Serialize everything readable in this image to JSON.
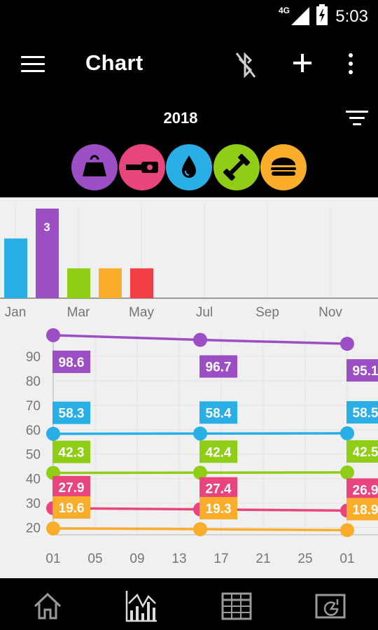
{
  "status": {
    "network": "4G",
    "time": "5:03"
  },
  "appbar": {
    "title": "Chart"
  },
  "year": "2018",
  "categories": [
    {
      "name": "weight",
      "color": "#9c4fc4",
      "icon": "weight-icon"
    },
    {
      "name": "tape-measure",
      "color": "#e8457e",
      "icon": "tape-measure-icon"
    },
    {
      "name": "water",
      "color": "#2aaee6",
      "icon": "water-drop-icon"
    },
    {
      "name": "exercise",
      "color": "#8fcd16",
      "icon": "dumbbell-icon"
    },
    {
      "name": "food",
      "color": "#f9ad2b",
      "icon": "burger-icon"
    }
  ],
  "chart_data": [
    {
      "type": "bar",
      "categories": [
        "Jan",
        "Feb",
        "Mar",
        "Apr",
        "May"
      ],
      "x_tick_labels": [
        "Jan",
        "Mar",
        "May",
        "Jul",
        "Sep",
        "Nov"
      ],
      "series": [
        {
          "values": [
            2,
            3,
            1,
            1,
            1
          ]
        }
      ],
      "bar_colors": [
        "#2aaee6",
        "#9c4fc4",
        "#8fcd16",
        "#f9ad2b",
        "#f23f46"
      ],
      "data_labels": [
        {
          "category": "Feb",
          "text": "3"
        }
      ],
      "ylim": [
        0,
        3
      ]
    },
    {
      "type": "line",
      "x_tick_labels": [
        "01",
        "05",
        "09",
        "13",
        "17",
        "21",
        "25",
        "01"
      ],
      "y_tick_labels": [
        "20",
        "30",
        "40",
        "50",
        "60",
        "70",
        "80",
        "90"
      ],
      "ylim": [
        17,
        100
      ],
      "series": [
        {
          "color": "#9c4fc4",
          "points": [
            {
              "day": 1,
              "value": 98.6,
              "label": "98.6"
            },
            {
              "day": 15,
              "value": 96.7,
              "label": "96.7"
            },
            {
              "day": 29,
              "value": 95.1,
              "label": "95.1"
            }
          ]
        },
        {
          "color": "#2aaee6",
          "points": [
            {
              "day": 1,
              "value": 58.3,
              "label": "58.3"
            },
            {
              "day": 15,
              "value": 58.4,
              "label": "58.4"
            },
            {
              "day": 29,
              "value": 58.5,
              "label": "58.5"
            }
          ]
        },
        {
          "color": "#8fcd16",
          "points": [
            {
              "day": 1,
              "value": 42.3,
              "label": "42.3"
            },
            {
              "day": 15,
              "value": 42.4,
              "label": "42.4"
            },
            {
              "day": 29,
              "value": 42.5,
              "label": "42.5"
            }
          ]
        },
        {
          "color": "#e8457e",
          "points": [
            {
              "day": 1,
              "value": 27.9,
              "label": "27.9"
            },
            {
              "day": 15,
              "value": 27.4,
              "label": "27.4"
            },
            {
              "day": 29,
              "value": 26.9,
              "label": "26.9"
            }
          ]
        },
        {
          "color": "#f9ad2b",
          "points": [
            {
              "day": 1,
              "value": 19.6,
              "label": "19.6"
            },
            {
              "day": 15,
              "value": 19.3,
              "label": "19.3"
            },
            {
              "day": 29,
              "value": 18.9,
              "label": "18.9"
            }
          ]
        }
      ]
    }
  ],
  "nav": [
    {
      "name": "home",
      "icon": "home-icon"
    },
    {
      "name": "chart",
      "icon": "chart-icon"
    },
    {
      "name": "table",
      "icon": "table-icon"
    },
    {
      "name": "report",
      "icon": "report-icon"
    }
  ]
}
